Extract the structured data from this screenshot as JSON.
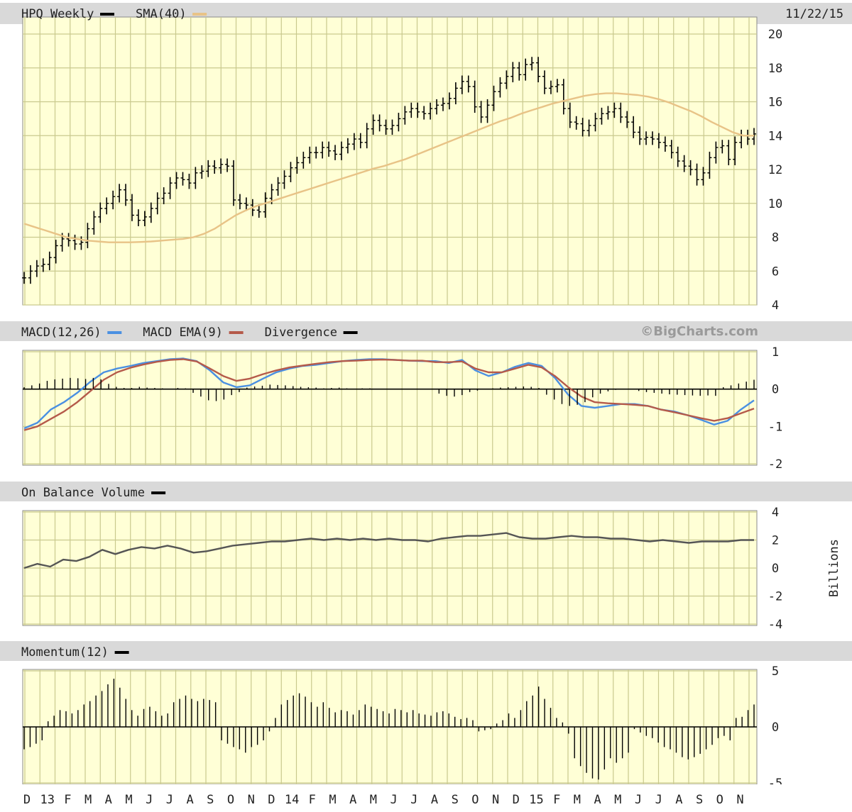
{
  "chart_data": {
    "type": "line",
    "date": "11/22/15",
    "watermark": "©BigCharts.com",
    "x_axis_labels": [
      "D",
      "13",
      "F",
      "M",
      "A",
      "M",
      "J",
      "J",
      "A",
      "S",
      "O",
      "N",
      "D",
      "14",
      "F",
      "M",
      "A",
      "M",
      "J",
      "J",
      "A",
      "S",
      "O",
      "N",
      "D",
      "15",
      "F",
      "M",
      "A",
      "M",
      "J",
      "J",
      "A",
      "S",
      "O",
      "N"
    ],
    "panels": [
      {
        "name": "price",
        "legend": [
          {
            "label": "HPQ Weekly",
            "color": "#000000"
          },
          {
            "label": "SMA(40)",
            "color": "#e8c387"
          }
        ],
        "ylim": [
          4,
          20
        ],
        "yticks": [
          "20",
          "18",
          "16",
          "14",
          "12",
          "10",
          "8",
          "6",
          "4"
        ],
        "series": [
          {
            "name": "HPQ Weekly",
            "color": "#000000",
            "values": [
              5.6,
              6.0,
              6.3,
              6.4,
              6.8,
              7.5,
              7.9,
              7.8,
              7.6,
              7.7,
              8.5,
              9.2,
              9.7,
              10.0,
              10.4,
              10.8,
              10.2,
              9.3,
              9.0,
              9.2,
              9.7,
              10.3,
              10.6,
              11.2,
              11.5,
              11.4,
              11.2,
              11.8,
              11.9,
              12.2,
              12.1,
              12.3,
              12.2,
              10.2,
              10.0,
              9.9,
              9.6,
              9.5,
              10.3,
              10.8,
              11.2,
              11.6,
              12.1,
              12.4,
              12.7,
              13.0,
              13.0,
              13.3,
              13.1,
              12.9,
              13.3,
              13.5,
              13.8,
              13.6,
              14.4,
              14.9,
              14.6,
              14.4,
              14.6,
              15.0,
              15.4,
              15.6,
              15.4,
              15.3,
              15.6,
              15.8,
              15.9,
              16.2,
              16.8,
              17.2,
              16.9,
              15.7,
              15.1,
              15.8,
              16.6,
              17.1,
              17.5,
              18.0,
              17.6,
              18.2,
              18.3,
              17.5,
              16.8,
              16.9,
              17.0,
              15.6,
              14.8,
              14.7,
              14.3,
              14.6,
              15.0,
              15.3,
              15.4,
              15.6,
              15.1,
              14.8,
              14.2,
              13.8,
              13.9,
              13.8,
              13.6,
              13.4,
              13.0,
              12.5,
              12.2,
              12.0,
              11.4,
              11.8,
              12.7,
              13.3,
              13.4,
              12.6,
              13.6,
              14.0,
              13.8,
              14.1
            ]
          },
          {
            "name": "SMA(40)",
            "color": "#e8c387",
            "values": [
              8.8,
              8.6,
              8.4,
              8.2,
              8.0,
              7.9,
              7.8,
              7.75,
              7.7,
              7.7,
              7.7,
              7.72,
              7.75,
              7.8,
              7.85,
              7.9,
              8.0,
              8.2,
              8.5,
              8.9,
              9.3,
              9.6,
              9.85,
              10.05,
              10.25,
              10.45,
              10.65,
              10.85,
              11.05,
              11.25,
              11.45,
              11.65,
              11.85,
              12.05,
              12.2,
              12.4,
              12.6,
              12.85,
              13.1,
              13.35,
              13.6,
              13.85,
              14.1,
              14.35,
              14.6,
              14.85,
              15.05,
              15.3,
              15.5,
              15.7,
              15.9,
              16.05,
              16.2,
              16.35,
              16.45,
              16.5,
              16.5,
              16.45,
              16.4,
              16.3,
              16.15,
              15.95,
              15.7,
              15.45,
              15.15,
              14.8,
              14.5,
              14.2,
              14.0,
              14.0
            ]
          }
        ]
      },
      {
        "name": "macd",
        "legend": [
          {
            "label": "MACD(12,26)",
            "color": "#4a90e2"
          },
          {
            "label": "MACD EMA(9)",
            "color": "#b55a4a"
          },
          {
            "label": "Divergence",
            "color": "#000000"
          }
        ],
        "ylim": [
          -2,
          1
        ],
        "yticks": [
          "1",
          "0",
          "-1",
          "-2"
        ],
        "series": [
          {
            "name": "MACD(12,26)",
            "color": "#4a90e2",
            "values": [
              -1.05,
              -0.9,
              -0.55,
              -0.35,
              -0.1,
              0.2,
              0.45,
              0.55,
              0.62,
              0.7,
              0.75,
              0.8,
              0.82,
              0.75,
              0.5,
              0.18,
              0.05,
              0.1,
              0.28,
              0.45,
              0.55,
              0.62,
              0.65,
              0.7,
              0.75,
              0.78,
              0.8,
              0.8,
              0.78,
              0.76,
              0.75,
              0.75,
              0.7,
              0.78,
              0.5,
              0.35,
              0.45,
              0.6,
              0.7,
              0.62,
              0.3,
              -0.15,
              -0.45,
              -0.5,
              -0.45,
              -0.4,
              -0.4,
              -0.45,
              -0.55,
              -0.6,
              -0.7,
              -0.82,
              -0.95,
              -0.85,
              -0.55,
              -0.3
            ]
          },
          {
            "name": "MACD EMA(9)",
            "color": "#b55a4a",
            "values": [
              -1.1,
              -1.0,
              -0.8,
              -0.6,
              -0.35,
              -0.05,
              0.25,
              0.45,
              0.57,
              0.66,
              0.73,
              0.78,
              0.8,
              0.74,
              0.55,
              0.35,
              0.22,
              0.28,
              0.4,
              0.5,
              0.58,
              0.63,
              0.68,
              0.72,
              0.75,
              0.76,
              0.78,
              0.79,
              0.78,
              0.76,
              0.76,
              0.72,
              0.72,
              0.74,
              0.55,
              0.45,
              0.45,
              0.55,
              0.65,
              0.58,
              0.35,
              0.05,
              -0.2,
              -0.35,
              -0.38,
              -0.4,
              -0.42,
              -0.45,
              -0.55,
              -0.62,
              -0.7,
              -0.78,
              -0.85,
              -0.78,
              -0.65,
              -0.52
            ]
          },
          {
            "name": "Divergence",
            "color": "#000000",
            "values": [
              0.05,
              0.1,
              0.15,
              0.22,
              0.26,
              0.28,
              0.3,
              0.29,
              0.27,
              0.3,
              0.26,
              0.14,
              0.06,
              0.03,
              0.03,
              0.06,
              0.04,
              0.03,
              0.02,
              0.01,
              0.03,
              0.02,
              -0.1,
              -0.2,
              -0.3,
              -0.32,
              -0.28,
              -0.16,
              -0.08,
              0.04,
              0.07,
              0.09,
              0.12,
              0.11,
              0.1,
              0.08,
              0.06,
              0.05,
              0.04,
              0.02,
              0.03,
              0.04,
              0.02,
              0.01,
              0.02,
              0.02,
              0.01,
              0.0,
              0.0,
              0.0,
              0.01,
              0.01,
              0.0,
              0.0,
              -0.12,
              -0.18,
              -0.2,
              -0.16,
              -0.08,
              -0.04,
              0.0,
              0.02,
              0.04,
              0.05,
              0.06,
              0.07,
              0.06,
              0.03,
              -0.15,
              -0.28,
              -0.4,
              -0.45,
              -0.42,
              -0.35,
              -0.22,
              -0.12,
              -0.06,
              -0.02,
              0.0,
              0.0,
              -0.05,
              -0.08,
              -0.1,
              -0.12,
              -0.14,
              -0.15,
              -0.16,
              -0.17,
              -0.18,
              -0.17,
              -0.18,
              0.05,
              0.1,
              0.15,
              0.2,
              0.25
            ]
          }
        ]
      },
      {
        "name": "obv",
        "legend": [
          {
            "label": "On Balance Volume",
            "color": "#000000"
          }
        ],
        "ylim": [
          -4,
          4
        ],
        "yticks": [
          "4",
          "2",
          "0",
          "-2",
          "-4"
        ],
        "ylabel": "Billions",
        "series": [
          {
            "name": "On Balance Volume",
            "color": "#555555",
            "values": [
              0.0,
              0.3,
              0.1,
              0.6,
              0.5,
              0.8,
              1.3,
              1.0,
              1.3,
              1.5,
              1.4,
              1.6,
              1.4,
              1.1,
              1.2,
              1.4,
              1.6,
              1.7,
              1.8,
              1.9,
              1.9,
              2.0,
              2.1,
              2.0,
              2.1,
              2.0,
              2.1,
              2.0,
              2.1,
              2.0,
              2.0,
              1.9,
              2.1,
              2.2,
              2.3,
              2.3,
              2.4,
              2.5,
              2.2,
              2.1,
              2.1,
              2.2,
              2.3,
              2.2,
              2.2,
              2.1,
              2.1,
              2.0,
              1.9,
              2.0,
              1.9,
              1.8,
              1.9,
              1.9,
              1.9,
              2.0,
              2.0
            ]
          }
        ]
      },
      {
        "name": "momentum",
        "legend": [
          {
            "label": "Momentum(12)",
            "color": "#000000"
          }
        ],
        "ylim": [
          -5,
          5
        ],
        "yticks": [
          "5",
          "0",
          "-5"
        ],
        "series": [
          {
            "name": "Momentum(12)",
            "color": "#000000",
            "values": [
              -2.0,
              -1.8,
              -1.5,
              -1.2,
              0.5,
              1.0,
              1.5,
              1.4,
              1.2,
              1.5,
              2.0,
              2.3,
              2.8,
              3.2,
              3.8,
              4.3,
              3.5,
              2.5,
              1.5,
              1.0,
              1.6,
              1.8,
              1.4,
              1.0,
              1.2,
              2.2,
              2.5,
              2.8,
              2.5,
              2.3,
              2.5,
              2.4,
              2.2,
              -1.2,
              -1.5,
              -1.8,
              -2.0,
              -2.3,
              -1.8,
              -1.6,
              -1.2,
              -0.4,
              0.8,
              2.0,
              2.4,
              2.8,
              3.0,
              2.7,
              2.2,
              1.8,
              2.2,
              1.7,
              1.3,
              1.5,
              1.4,
              1.1,
              1.5,
              2.0,
              1.8,
              1.6,
              1.4,
              1.2,
              1.6,
              1.5,
              1.3,
              1.5,
              1.2,
              1.1,
              1.0,
              1.3,
              1.4,
              1.2,
              0.9,
              0.7,
              0.8,
              0.6,
              -0.4,
              -0.3,
              -0.2,
              0.3,
              0.6,
              1.2,
              0.8,
              1.5,
              2.3,
              2.8,
              3.6,
              2.5,
              1.7,
              0.8,
              0.4,
              -0.6,
              -2.8,
              -3.5,
              -4.1,
              -4.6,
              -4.7,
              -3.8,
              -2.8,
              -3.2,
              -2.8,
              -2.3,
              -0.2,
              -0.5,
              -0.8,
              -1.0,
              -1.4,
              -1.8,
              -2.0,
              -2.3,
              -2.7,
              -2.9,
              -2.7,
              -2.4,
              -2.0,
              -1.6,
              -1.0,
              -0.8,
              -1.2,
              0.8,
              0.9,
              1.5,
              2.0
            ]
          }
        ]
      }
    ]
  }
}
